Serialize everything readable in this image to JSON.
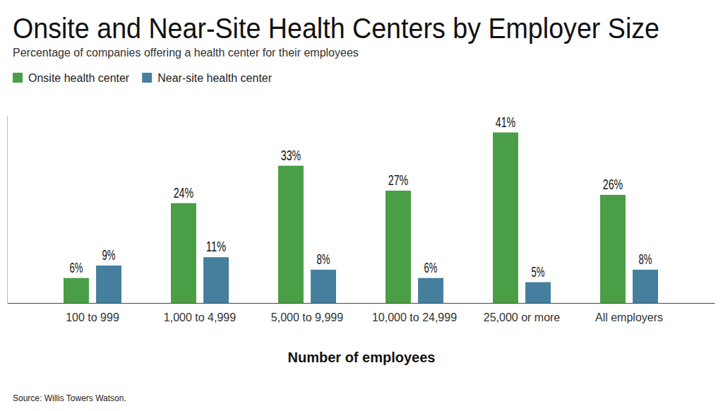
{
  "chart_data": {
    "type": "bar",
    "title": "Onsite and Near-Site Health Centers by Employer Size",
    "subtitle": "Percentage of companies offering a health center for their employees",
    "x_label": "Number of employees",
    "source": "Source: Willis Towers Watson.",
    "categories": [
      "100 to 999",
      "1,000 to 4,999",
      "5,000 to 9,999",
      "10,000 to 24,999",
      "25,000 or more",
      "All employers"
    ],
    "series": [
      {
        "name": "Onsite health center",
        "color": "#4a9e45",
        "values": [
          6,
          24,
          33,
          27,
          41,
          26
        ],
        "value_labels": [
          "6%",
          "24%",
          "33%",
          "27%",
          "41%",
          "26%"
        ]
      },
      {
        "name": "Near-site health center",
        "color": "#467f9e",
        "values": [
          9,
          11,
          8,
          6,
          5,
          8
        ],
        "value_labels": [
          "9%",
          "11%",
          "8%",
          "6%",
          "5%",
          "8%"
        ]
      }
    ],
    "ylim": [
      0,
      45
    ],
    "yticks": [],
    "tick_labels": "x",
    "data_labels": true,
    "legend": "top-left"
  }
}
